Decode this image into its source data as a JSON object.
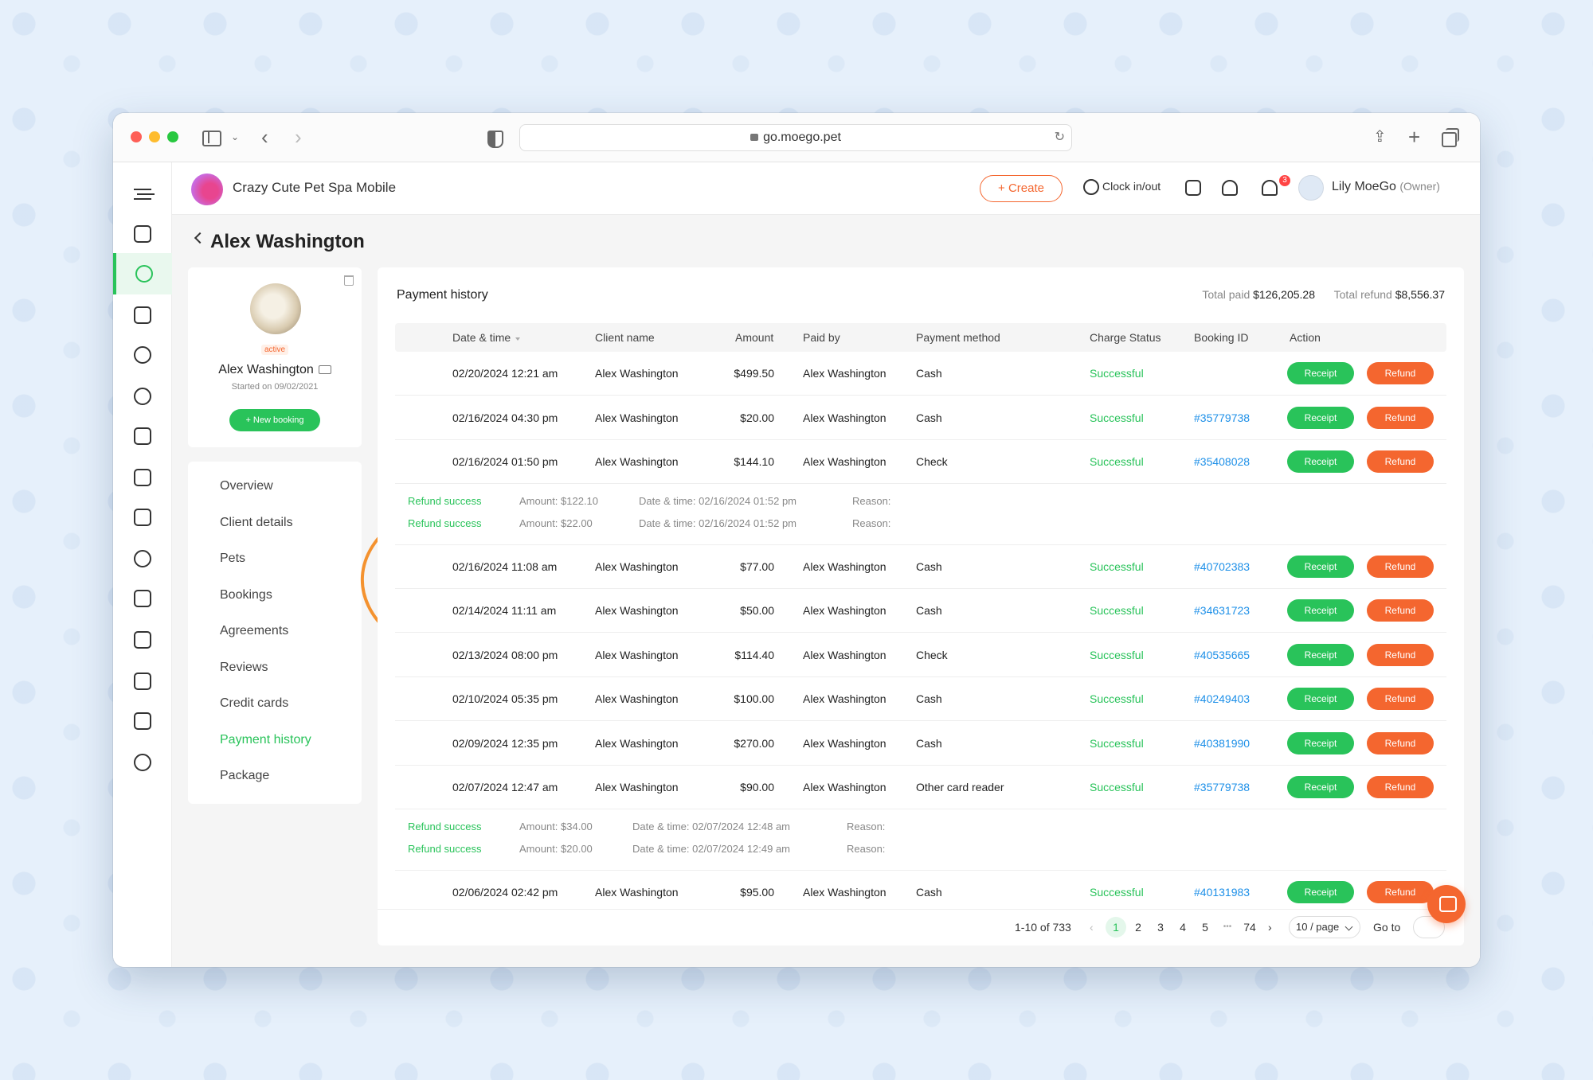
{
  "browser": {
    "url": "go.moego.pet"
  },
  "header": {
    "business_name": "Crazy Cute Pet Spa Mobile",
    "create_label": "+ Create",
    "clock_label": "Clock in/out",
    "notification_count": "3",
    "user_name": "Lily MoeGo",
    "user_role": "(Owner)"
  },
  "page": {
    "title": "Alex Washington"
  },
  "profile": {
    "status": "active",
    "name": "Alex Washington",
    "started": "Started on 09/02/2021",
    "new_booking_label": "+ New booking"
  },
  "side_nav": {
    "items": [
      {
        "label": "Overview"
      },
      {
        "label": "Client details"
      },
      {
        "label": "Pets"
      },
      {
        "label": "Bookings"
      },
      {
        "label": "Agreements"
      },
      {
        "label": "Reviews"
      },
      {
        "label": "Credit cards"
      },
      {
        "label": "Payment history"
      },
      {
        "label": "Package"
      }
    ],
    "active": "Payment history"
  },
  "payment_history": {
    "title": "Payment history",
    "total_paid_label": "Total paid",
    "total_paid": "$126,205.28",
    "total_refund_label": "Total refund",
    "total_refund": "$8,556.37",
    "columns": [
      "Date & time",
      "Client name",
      "Amount",
      "Paid by",
      "Payment method",
      "Charge Status",
      "Booking ID",
      "Action"
    ],
    "receipt_label": "Receipt",
    "refund_label": "Refund",
    "rows": [
      {
        "date": "02/20/2024 12:21 am",
        "client": "Alex Washington",
        "amount": "$499.50",
        "paid_by": "Alex Washington",
        "method": "Cash",
        "status": "Successful",
        "booking": ""
      },
      {
        "date": "02/16/2024 04:30 pm",
        "client": "Alex Washington",
        "amount": "$20.00",
        "paid_by": "Alex Washington",
        "method": "Cash",
        "status": "Successful",
        "booking": "#35779738"
      },
      {
        "date": "02/16/2024 01:50 pm",
        "client": "Alex Washington",
        "amount": "$144.10",
        "paid_by": "Alex Washington",
        "method": "Check",
        "status": "Successful",
        "booking": "#35408028"
      },
      {
        "date": "02/16/2024 11:08 am",
        "client": "Alex Washington",
        "amount": "$77.00",
        "paid_by": "Alex Washington",
        "method": "Cash",
        "status": "Successful",
        "booking": "#40702383"
      },
      {
        "date": "02/14/2024 11:11 am",
        "client": "Alex Washington",
        "amount": "$50.00",
        "paid_by": "Alex Washington",
        "method": "Cash",
        "status": "Successful",
        "booking": "#34631723"
      },
      {
        "date": "02/13/2024 08:00 pm",
        "client": "Alex Washington",
        "amount": "$114.40",
        "paid_by": "Alex Washington",
        "method": "Check",
        "status": "Successful",
        "booking": "#40535665"
      },
      {
        "date": "02/10/2024 05:35 pm",
        "client": "Alex Washington",
        "amount": "$100.00",
        "paid_by": "Alex Washington",
        "method": "Cash",
        "status": "Successful",
        "booking": "#40249403"
      },
      {
        "date": "02/09/2024 12:35 pm",
        "client": "Alex Washington",
        "amount": "$270.00",
        "paid_by": "Alex Washington",
        "method": "Cash",
        "status": "Successful",
        "booking": "#40381990"
      },
      {
        "date": "02/07/2024 12:47 am",
        "client": "Alex Washington",
        "amount": "$90.00",
        "paid_by": "Alex Washington",
        "method": "Other card reader",
        "status": "Successful",
        "booking": "#35779738"
      },
      {
        "date": "02/06/2024 02:42 pm",
        "client": "Alex Washington",
        "amount": "$95.00",
        "paid_by": "Alex Washington",
        "method": "Cash",
        "status": "Successful",
        "booking": "#40131983"
      }
    ],
    "refunds_a": [
      {
        "status": "Refund success",
        "amount": "Amount: $122.10",
        "date": "Date & time: 02/16/2024 01:52 pm",
        "reason": "Reason:"
      },
      {
        "status": "Refund success",
        "amount": "Amount: $22.00",
        "date": "Date & time: 02/16/2024 01:52 pm",
        "reason": "Reason:"
      }
    ],
    "refunds_b": [
      {
        "status": "Refund success",
        "amount": "Amount: $34.00",
        "date": "Date & time: 02/07/2024 12:48 am",
        "reason": "Reason:"
      },
      {
        "status": "Refund success",
        "amount": "Amount: $20.00",
        "date": "Date & time: 02/07/2024 12:49 am",
        "reason": "Reason:"
      }
    ]
  },
  "pagination": {
    "range": "1-10 of 733",
    "pages": [
      "1",
      "2",
      "3",
      "4",
      "5"
    ],
    "ellipsis": "•••",
    "last_page": "74",
    "page_size": "10 / page",
    "goto_label": "Go to"
  },
  "colors": {
    "brand_orange": "#f4662f",
    "success_green": "#29c35a",
    "link_blue": "#1e90e8"
  }
}
